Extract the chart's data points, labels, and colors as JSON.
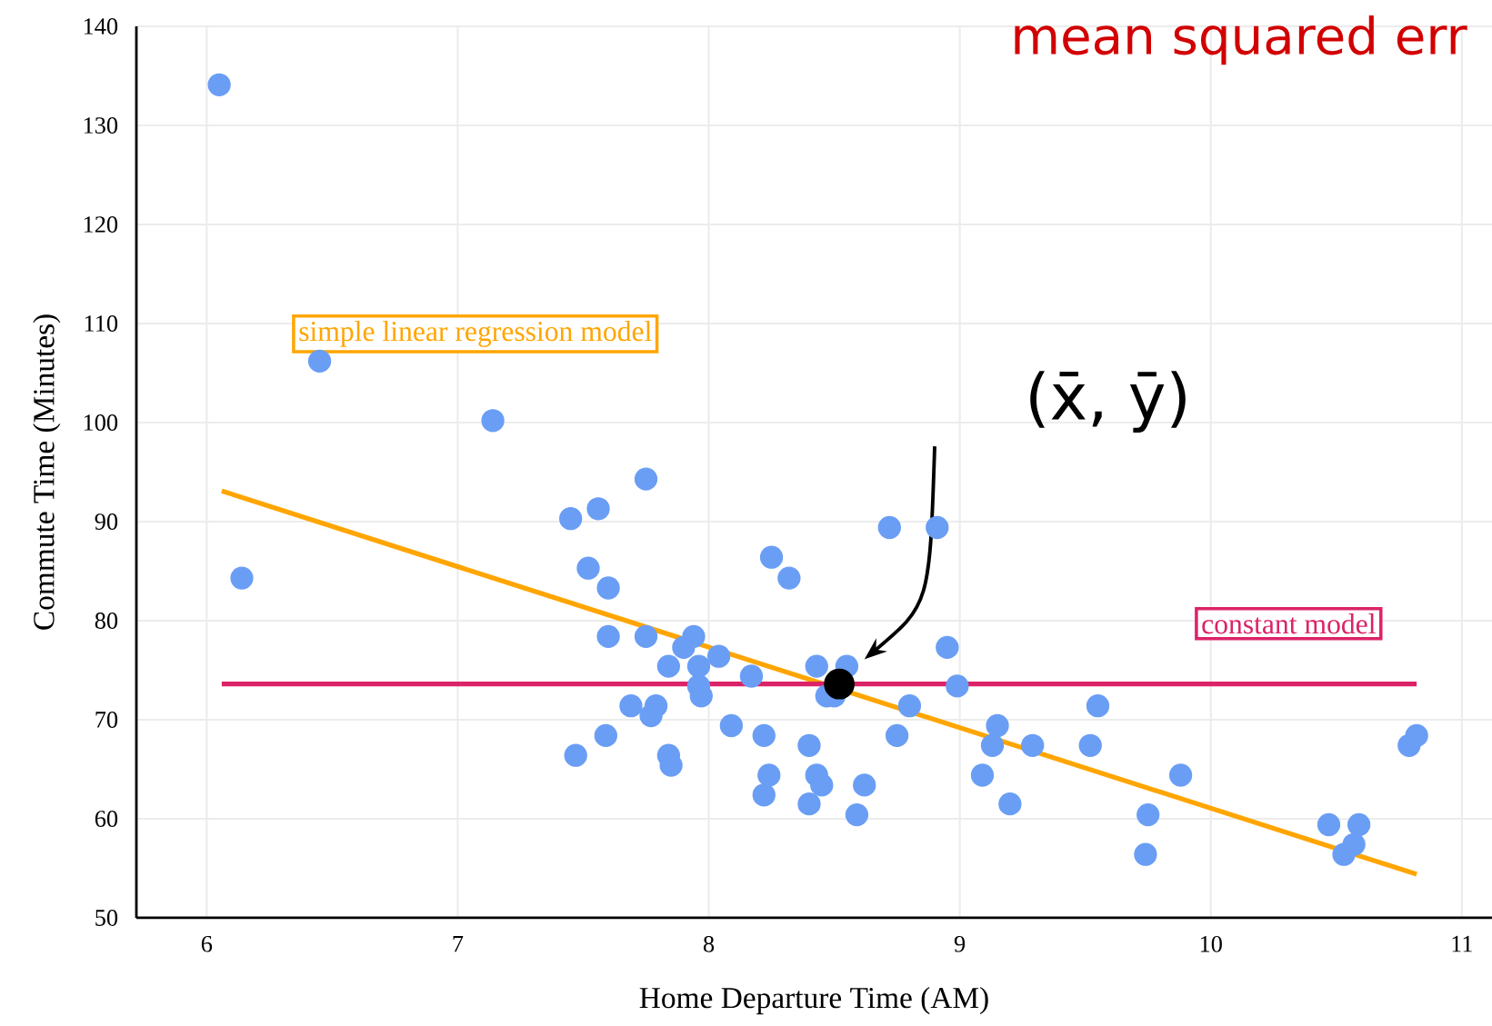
{
  "chart_data": {
    "type": "scatter",
    "xlabel": "Home Departure Time (AM)",
    "ylabel": "Commute Time (Minutes)",
    "xlim": [
      5.72,
      11.12
    ],
    "ylim": [
      50,
      140
    ],
    "xticks": [
      6,
      7,
      8,
      9,
      10,
      11
    ],
    "yticks": [
      50,
      60,
      70,
      80,
      90,
      100,
      110,
      120,
      130,
      140
    ],
    "grid": true,
    "marker": "circle",
    "series": [
      {
        "color": "#6a9ef5",
        "x": [
          6.05,
          6.45,
          6.14,
          7.14,
          7.45,
          7.56,
          7.75,
          7.52,
          7.6,
          7.6,
          7.75,
          7.94,
          7.9,
          7.84,
          7.96,
          8.04,
          7.96,
          7.97,
          7.69,
          7.79,
          7.77,
          7.47,
          7.59,
          7.84,
          7.85,
          8.09,
          8.17,
          8.25,
          8.32,
          8.22,
          8.24,
          8.22,
          8.4,
          8.4,
          8.43,
          8.45,
          8.43,
          8.55,
          8.47,
          8.5,
          8.59,
          8.62,
          8.72,
          8.91,
          8.95,
          8.99,
          8.8,
          8.75,
          9.09,
          9.13,
          9.15,
          9.2,
          9.29,
          9.52,
          9.55,
          9.75,
          9.74,
          9.88,
          10.47,
          10.59,
          10.57,
          10.53,
          10.79,
          10.82
        ],
        "values": [
          134.1,
          106.2,
          84.3,
          100.2,
          90.3,
          91.3,
          94.3,
          85.3,
          83.3,
          78.4,
          78.4,
          78.4,
          77.3,
          75.4,
          75.4,
          76.4,
          73.4,
          72.4,
          71.4,
          71.4,
          70.4,
          66.4,
          68.4,
          66.4,
          65.4,
          69.4,
          74.4,
          86.4,
          84.3,
          68.4,
          64.4,
          62.4,
          67.4,
          61.5,
          64.4,
          63.4,
          75.4,
          75.4,
          72.4,
          72.4,
          60.4,
          63.4,
          89.4,
          89.4,
          77.3,
          73.4,
          71.4,
          68.4,
          64.4,
          67.4,
          69.4,
          61.5,
          67.4,
          67.4,
          71.4,
          60.4,
          56.4,
          64.4,
          59.4,
          59.4,
          57.4,
          56.4,
          67.4,
          68.4
        ]
      },
      {
        "type": "line",
        "color": "#ffa500",
        "marker": "none",
        "x": [
          6.06,
          10.82
        ],
        "values": [
          93.1,
          54.4
        ]
      },
      {
        "type": "line",
        "color": "#dc2367",
        "marker": "none",
        "x": [
          6.06,
          10.82
        ],
        "values": [
          73.6,
          73.6
        ]
      },
      {
        "color": "#000000",
        "x": [
          8.52
        ],
        "values": [
          73.6
        ]
      }
    ],
    "annotations": [
      "simple linear regression model",
      "constant model",
      "(x̄, ȳ)",
      "mean squared err"
    ]
  }
}
